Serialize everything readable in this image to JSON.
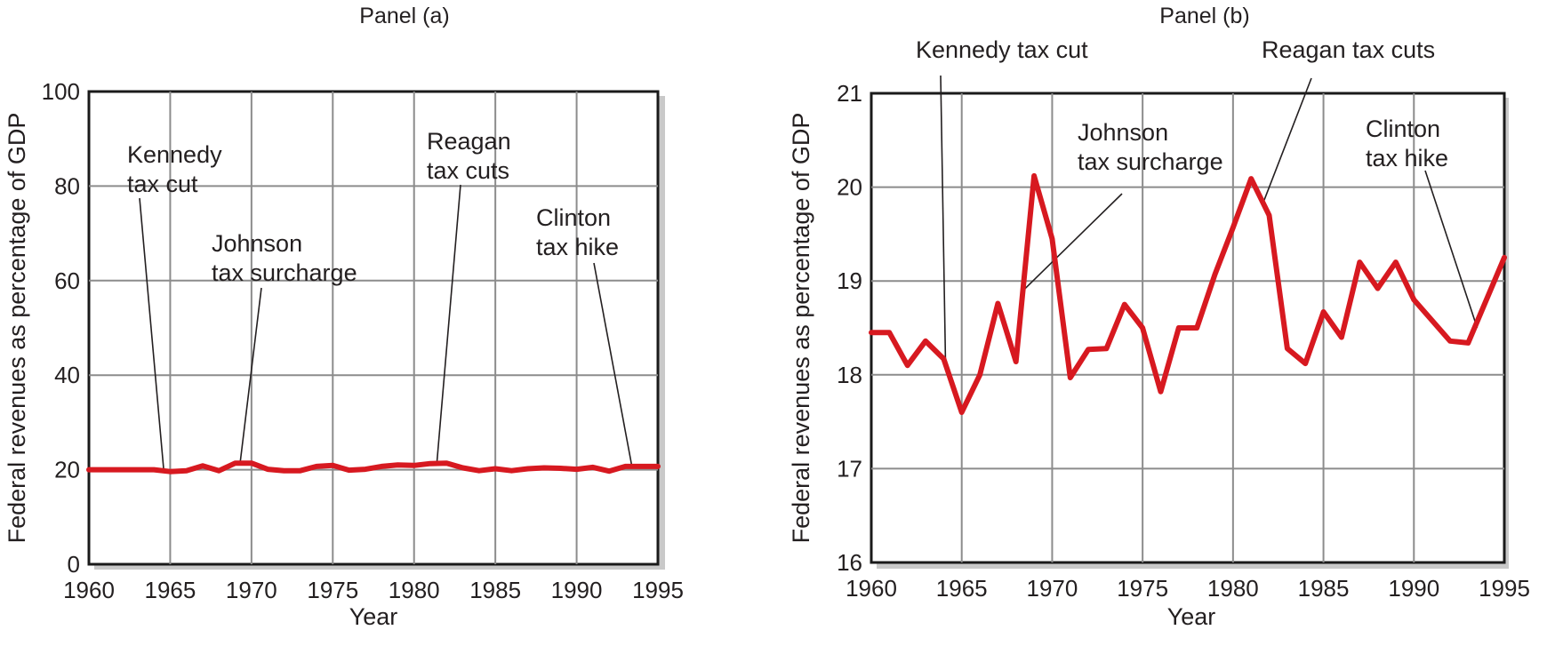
{
  "chart_data": [
    {
      "type": "line",
      "title": "Panel (a)",
      "xlabel": "Year",
      "ylabel": "Federal revenues as percentage of GDP",
      "xlim": [
        1960,
        1995
      ],
      "ylim": [
        0,
        100
      ],
      "xticks": [
        1960,
        1965,
        1970,
        1975,
        1980,
        1985,
        1990,
        1995
      ],
      "yticks": [
        0,
        20,
        40,
        60,
        80,
        100
      ],
      "grid": true,
      "line_color": "#d71920",
      "series": [
        {
          "x": [
            1960,
            1961,
            1962,
            1963,
            1964,
            1965,
            1966,
            1967,
            1968,
            1969,
            1970,
            1971,
            1972,
            1973,
            1974,
            1975,
            1976,
            1977,
            1978,
            1979,
            1980,
            1981,
            1982,
            1983,
            1984,
            1985,
            1986,
            1987,
            1988,
            1989,
            1990,
            1991,
            1992,
            1993,
            1994,
            1995
          ],
          "values": [
            20,
            20,
            20,
            20,
            20,
            19.6,
            19.8,
            20.8,
            19.8,
            21.4,
            21.4,
            20.1,
            19.8,
            19.8,
            20.7,
            20.9,
            19.9,
            20.1,
            20.7,
            21.0,
            20.9,
            21.3,
            21.4,
            20.4,
            19.8,
            20.2,
            19.8,
            20.2,
            20.4,
            20.3,
            20.1,
            20.5,
            19.7,
            20.7,
            20.7,
            20.7
          ]
        }
      ],
      "annotations": [
        {
          "lines": [
            "Kennedy",
            "tax cut"
          ],
          "year": 1964.6,
          "value": 20
        },
        {
          "lines": [
            "Johnson",
            "tax surcharge"
          ],
          "year": 1969.3,
          "value": 21.4
        },
        {
          "lines": [
            "Reagan",
            "tax cuts"
          ],
          "year": 1981.4,
          "value": 21.3
        },
        {
          "lines": [
            "Clinton",
            "tax hike"
          ],
          "year": 1993.4,
          "value": 20.7
        }
      ]
    },
    {
      "type": "line",
      "title": "Panel (b)",
      "xlabel": "Year",
      "ylabel": "Federal revenues as percentage of GDP",
      "xlim": [
        1960,
        1995
      ],
      "ylim": [
        16,
        21
      ],
      "xticks": [
        1960,
        1965,
        1970,
        1975,
        1980,
        1985,
        1990,
        1995
      ],
      "yticks": [
        16,
        17,
        18,
        19,
        20,
        21
      ],
      "grid": true,
      "line_color": "#d71920",
      "series": [
        {
          "x": [
            1960,
            1961,
            1962,
            1963,
            1964,
            1965,
            1966,
            1967,
            1968,
            1969,
            1970,
            1971,
            1972,
            1973,
            1974,
            1975,
            1976,
            1977,
            1978,
            1979,
            1980,
            1981,
            1982,
            1983,
            1984,
            1985,
            1986,
            1987,
            1988,
            1989,
            1990,
            1992,
            1993,
            1995
          ],
          "values": [
            18.45,
            18.45,
            18.1,
            18.36,
            18.17,
            17.6,
            18.0,
            18.76,
            18.14,
            20.12,
            19.45,
            17.97,
            18.27,
            18.28,
            18.75,
            18.5,
            17.82,
            18.5,
            18.5,
            19.07,
            19.57,
            20.09,
            19.7,
            18.28,
            18.12,
            18.67,
            18.4,
            19.2,
            18.92,
            19.2,
            18.8,
            18.36,
            18.34,
            19.25
          ]
        }
      ],
      "annotations": [
        {
          "lines": [
            "Kennedy tax cut"
          ],
          "year": 1964.1,
          "value": 18.17
        },
        {
          "lines": [
            "Johnson",
            "tax surcharge"
          ],
          "year": 1968.4,
          "value": 18.9
        },
        {
          "lines": [
            "Reagan tax cuts"
          ],
          "year": 1981.7,
          "value": 19.85
        },
        {
          "lines": [
            "Clinton",
            "tax hike"
          ],
          "year": 1993.5,
          "value": 18.5
        }
      ]
    }
  ]
}
